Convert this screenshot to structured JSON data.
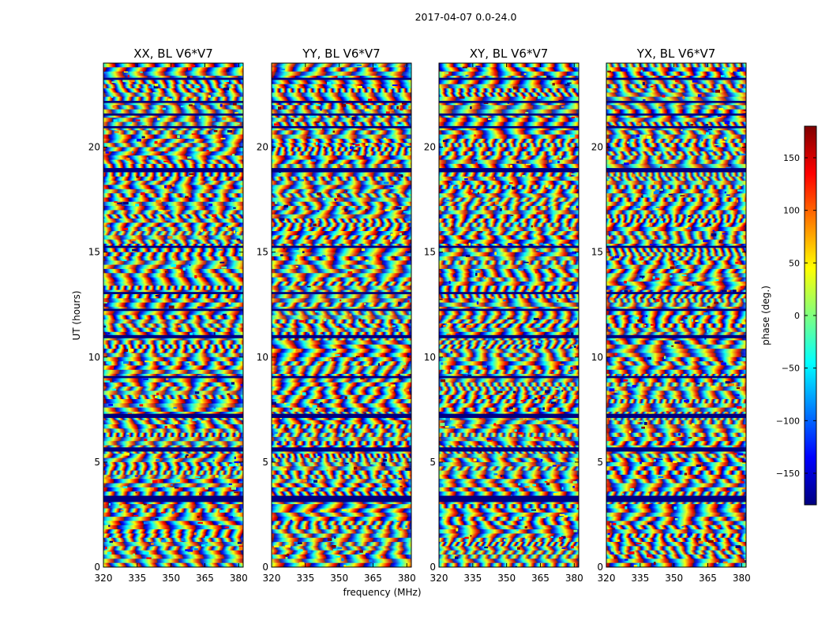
{
  "chart_data": {
    "type": "heatmap",
    "suptitle": "2017-04-07 0.0-24.0",
    "panels": [
      {
        "title": "XX, BL V6*V7"
      },
      {
        "title": "YY, BL V6*V7"
      },
      {
        "title": "XY, BL V6*V7"
      },
      {
        "title": "YX, BL V6*V7"
      }
    ],
    "xlabel": "frequency (MHz)",
    "ylabel": "UT (hours)",
    "xlim": [
      320,
      382
    ],
    "ylim": [
      0,
      24
    ],
    "xticks": [
      320,
      335,
      350,
      365,
      380
    ],
    "yticks": [
      0,
      5,
      10,
      15,
      20
    ],
    "colorbar": {
      "label": "phase (deg.)",
      "lim": [
        -180,
        180
      ],
      "ticks": [
        150,
        100,
        50,
        0,
        -50,
        -100,
        -150
      ],
      "tick_labels": [
        "150",
        "100",
        "50",
        "0",
        "−50",
        "−100",
        "−150"
      ],
      "colormap": "jet",
      "colors": [
        "#00007f",
        "#0000ff",
        "#007fff",
        "#00ffff",
        "#7fff7f",
        "#ffff00",
        "#ff7f00",
        "#ff0000",
        "#7f0000"
      ]
    },
    "gap_hours": [
      [
        3.1,
        3.4
      ],
      [
        5.5,
        5.7
      ],
      [
        7.1,
        7.3
      ],
      [
        9.0,
        9.1
      ],
      [
        10.9,
        11.05
      ],
      [
        12.2,
        12.3
      ],
      [
        13.0,
        13.1
      ],
      [
        15.2,
        15.3
      ],
      [
        18.8,
        19.0
      ],
      [
        20.9,
        21.0
      ],
      [
        21.5,
        21.6
      ],
      [
        22.1,
        22.2
      ],
      [
        23.2,
        23.3
      ]
    ]
  }
}
